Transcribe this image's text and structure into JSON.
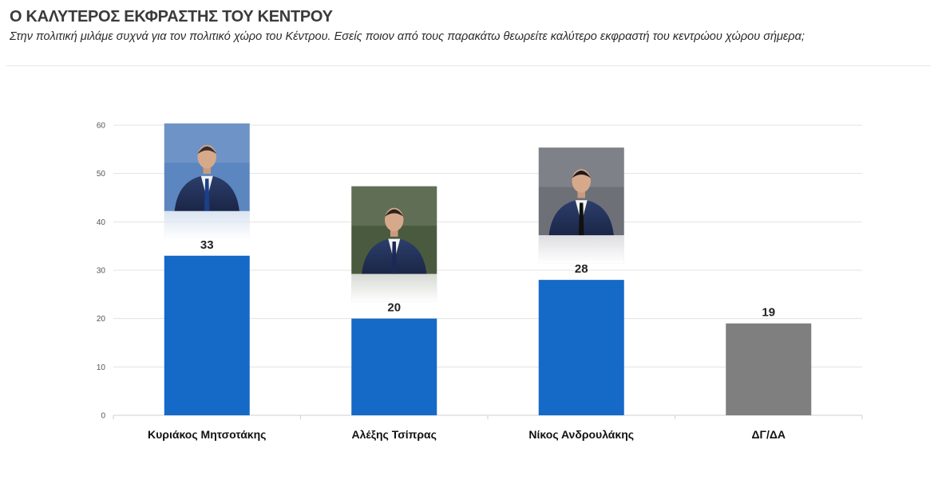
{
  "header": {
    "title": "Ο ΚΑΛΥΤΕΡΟΣ ΕΚΦΡΑΣΤΗΣ ΤΟΥ ΚΕΝΤΡΟΥ",
    "subtitle": "Στην πολιτική μιλάμε συχνά για τον πολιτικό χώρο του Κέντρου. Εσείς ποιον από τους παρακάτω θεωρείτε καλύτερο εκφραστή του κεντρώου χώρου σήμερα;"
  },
  "chart_data": {
    "type": "bar",
    "title": "Ο ΚΑΛΥΤΕΡΟΣ ΕΚΦΡΑΣΤΗΣ ΤΟΥ ΚΕΝΤΡΟΥ",
    "subtitle": "Στην πολιτική μιλάμε συχνά για τον πολιτικό χώρο του Κέντρου. Εσείς ποιον από τους παρακάτω θεωρείτε καλύτερο εκφραστή του κεντρώου χώρου σήμερα;",
    "categories": [
      "Κυριάκος Μητσοτάκης",
      "Αλέξης Τσίπρας",
      "Νίκος Ανδρουλάκης",
      "ΔΓ/ΔΑ"
    ],
    "values": [
      33,
      20,
      28,
      19
    ],
    "value_labels": [
      "33",
      "20",
      "28",
      "19"
    ],
    "bar_colors": [
      "#1569c7",
      "#1569c7",
      "#1569c7",
      "#7f7f7f"
    ],
    "has_photo": [
      true,
      true,
      true,
      false
    ],
    "ylim": [
      0,
      60
    ],
    "yticks": [
      0,
      10,
      20,
      30,
      40,
      50,
      60
    ],
    "ytick_labels": [
      "0",
      "10",
      "20",
      "30",
      "40",
      "50",
      "60"
    ],
    "xlabel": "",
    "ylabel": "",
    "grid": true,
    "legend": "none"
  }
}
